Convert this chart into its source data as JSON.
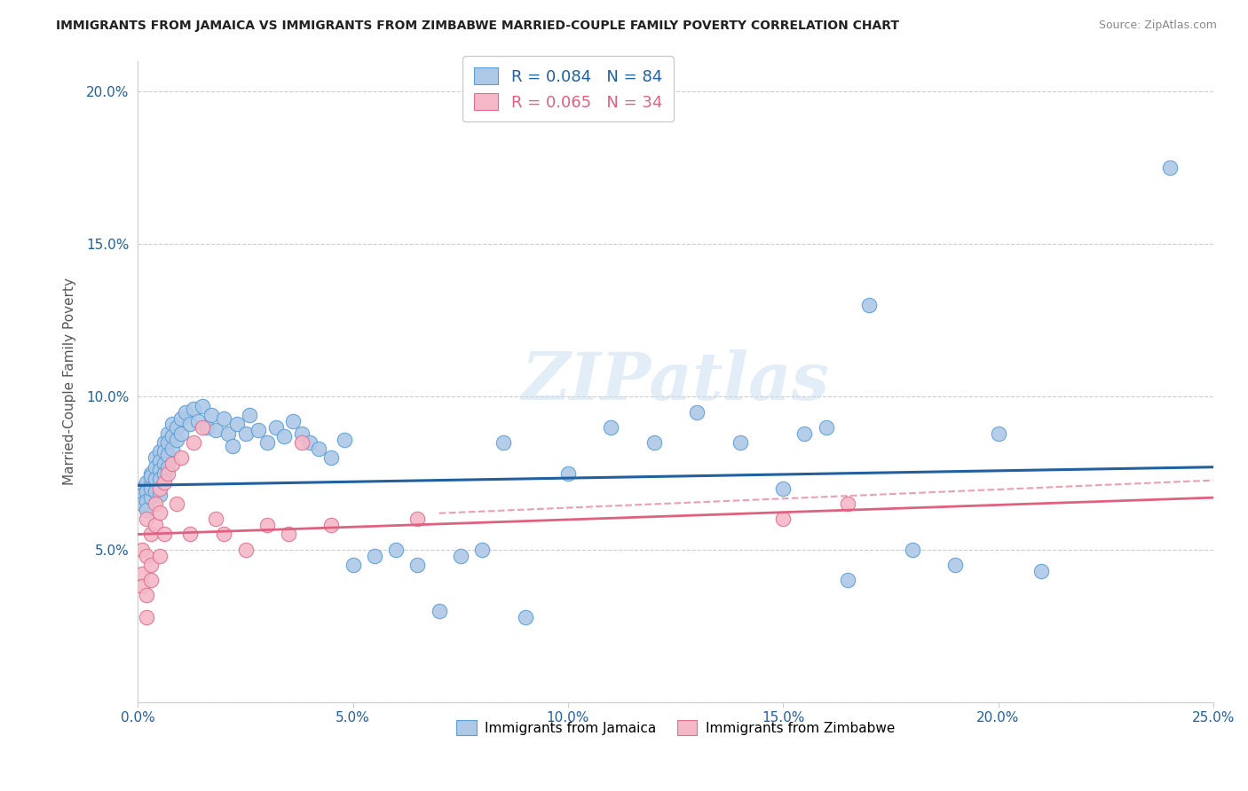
{
  "title": "IMMIGRANTS FROM JAMAICA VS IMMIGRANTS FROM ZIMBABWE MARRIED-COUPLE FAMILY POVERTY CORRELATION CHART",
  "source": "Source: ZipAtlas.com",
  "ylabel": "Married-Couple Family Poverty",
  "xlim": [
    0.0,
    0.25
  ],
  "ylim": [
    0.0,
    0.21
  ],
  "xticks": [
    0.0,
    0.05,
    0.1,
    0.15,
    0.2,
    0.25
  ],
  "xticklabels": [
    "0.0%",
    "5.0%",
    "10.0%",
    "15.0%",
    "20.0%",
    "25.0%"
  ],
  "yticks": [
    0.05,
    0.1,
    0.15,
    0.2
  ],
  "yticklabels": [
    "5.0%",
    "10.0%",
    "15.0%",
    "20.0%"
  ],
  "jamaica_color": "#aec8e8",
  "jamaica_edge_color": "#5a9fd4",
  "zimbabwe_color": "#f4b8c8",
  "zimbabwe_edge_color": "#e07090",
  "jamaica_line_color": "#2060a0",
  "zimbabwe_line_color": "#e06080",
  "jamaica_R": 0.084,
  "jamaica_N": 84,
  "zimbabwe_R": 0.065,
  "zimbabwe_N": 34,
  "watermark": "ZIPatlas",
  "jamaica_x": [
    0.001,
    0.001,
    0.001,
    0.002,
    0.002,
    0.002,
    0.002,
    0.003,
    0.003,
    0.003,
    0.003,
    0.003,
    0.004,
    0.004,
    0.004,
    0.004,
    0.005,
    0.005,
    0.005,
    0.005,
    0.005,
    0.006,
    0.006,
    0.006,
    0.006,
    0.007,
    0.007,
    0.007,
    0.007,
    0.008,
    0.008,
    0.008,
    0.009,
    0.009,
    0.01,
    0.01,
    0.011,
    0.012,
    0.013,
    0.014,
    0.015,
    0.016,
    0.017,
    0.018,
    0.02,
    0.021,
    0.022,
    0.023,
    0.025,
    0.026,
    0.028,
    0.03,
    0.032,
    0.034,
    0.036,
    0.038,
    0.04,
    0.042,
    0.045,
    0.048,
    0.05,
    0.055,
    0.06,
    0.065,
    0.07,
    0.075,
    0.08,
    0.085,
    0.09,
    0.1,
    0.11,
    0.12,
    0.13,
    0.14,
    0.15,
    0.155,
    0.16,
    0.165,
    0.17,
    0.18,
    0.19,
    0.2,
    0.21,
    0.24
  ],
  "jamaica_y": [
    0.07,
    0.068,
    0.065,
    0.072,
    0.069,
    0.066,
    0.063,
    0.075,
    0.071,
    0.067,
    0.074,
    0.07,
    0.08,
    0.077,
    0.073,
    0.069,
    0.082,
    0.079,
    0.076,
    0.073,
    0.068,
    0.085,
    0.082,
    0.078,
    0.075,
    0.088,
    0.085,
    0.081,
    0.077,
    0.091,
    0.087,
    0.083,
    0.09,
    0.086,
    0.093,
    0.088,
    0.095,
    0.091,
    0.096,
    0.092,
    0.097,
    0.09,
    0.094,
    0.089,
    0.093,
    0.088,
    0.084,
    0.091,
    0.088,
    0.094,
    0.089,
    0.085,
    0.09,
    0.087,
    0.092,
    0.088,
    0.085,
    0.083,
    0.08,
    0.086,
    0.045,
    0.048,
    0.05,
    0.045,
    0.03,
    0.048,
    0.05,
    0.085,
    0.028,
    0.075,
    0.09,
    0.085,
    0.095,
    0.085,
    0.07,
    0.088,
    0.09,
    0.04,
    0.13,
    0.05,
    0.045,
    0.088,
    0.043,
    0.175
  ],
  "zimbabwe_x": [
    0.001,
    0.001,
    0.001,
    0.002,
    0.002,
    0.002,
    0.002,
    0.003,
    0.003,
    0.003,
    0.004,
    0.004,
    0.005,
    0.005,
    0.005,
    0.006,
    0.006,
    0.007,
    0.008,
    0.009,
    0.01,
    0.012,
    0.013,
    0.015,
    0.018,
    0.02,
    0.025,
    0.03,
    0.035,
    0.038,
    0.045,
    0.065,
    0.15,
    0.165
  ],
  "zimbabwe_y": [
    0.042,
    0.05,
    0.038,
    0.06,
    0.048,
    0.035,
    0.028,
    0.055,
    0.045,
    0.04,
    0.065,
    0.058,
    0.07,
    0.062,
    0.048,
    0.072,
    0.055,
    0.075,
    0.078,
    0.065,
    0.08,
    0.055,
    0.085,
    0.09,
    0.06,
    0.055,
    0.05,
    0.058,
    0.055,
    0.085,
    0.058,
    0.06,
    0.06,
    0.065
  ]
}
